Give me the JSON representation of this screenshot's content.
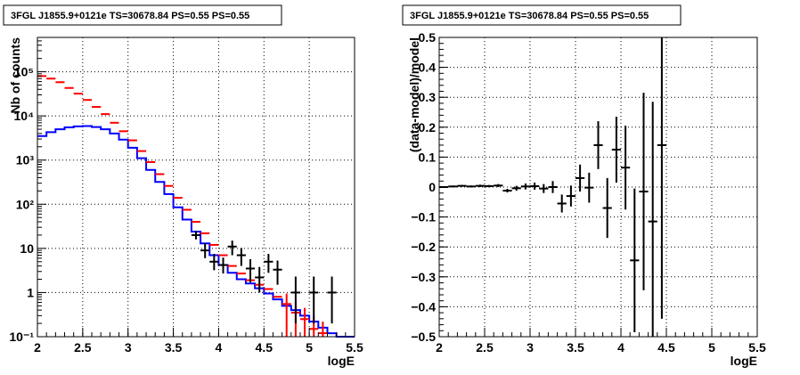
{
  "chart_data": [
    {
      "type": "histogram",
      "title": "3FGL J1855.9+0121e TS=30678.84 PS=0.55 PS=0.55",
      "xlabel": "logE",
      "ylabel": "Nb of counts",
      "xlim": [
        2,
        5.5
      ],
      "ylim": [
        0.1,
        600000
      ],
      "yscale": "log",
      "grid": true,
      "x_ticks": [
        "2",
        "2.5",
        "3",
        "3.5",
        "4",
        "4.5",
        "5",
        "5.5"
      ],
      "y_ticks": [
        {
          "value": 0.1,
          "label": "10⁻¹"
        },
        {
          "value": 1,
          "label": "1"
        },
        {
          "value": 10,
          "label": "10"
        },
        {
          "value": 100,
          "label": "10²"
        },
        {
          "value": 1000,
          "label": "10³"
        },
        {
          "value": 10000,
          "label": "10⁴"
        },
        {
          "value": 100000,
          "label": "10⁵"
        }
      ],
      "bin_width": 0.1,
      "series": [
        {
          "kind": "step",
          "color": "#0000ff",
          "x": [
            2.05,
            2.15,
            2.25,
            2.35,
            2.45,
            2.55,
            2.65,
            2.75,
            2.85,
            2.95,
            3.05,
            3.15,
            3.25,
            3.35,
            3.45,
            3.55,
            3.65,
            3.75,
            3.85,
            3.95,
            4.05,
            4.15,
            4.25,
            4.35,
            4.45,
            4.55,
            4.65,
            4.75,
            4.85,
            4.95,
            5.05,
            5.15,
            5.25,
            5.35,
            5.45
          ],
          "values": [
            3500,
            4300,
            5000,
            5500,
            5800,
            5900,
            5600,
            5000,
            4000,
            2900,
            1900,
            1100,
            600,
            320,
            170,
            85,
            45,
            24,
            13,
            7,
            4.2,
            2.8,
            2.0,
            1.6,
            1.25,
            0.95,
            0.7,
            0.5,
            0.4,
            0.3,
            0.22,
            0.16,
            0.12,
            0.09,
            0.07
          ]
        },
        {
          "kind": "errorbar",
          "color": "#ff0000",
          "x": [
            2.05,
            2.15,
            2.25,
            2.35,
            2.45,
            2.55,
            2.65,
            2.75,
            2.85,
            2.95,
            3.05,
            3.15,
            3.25,
            3.35,
            3.45,
            3.55,
            3.65,
            3.75,
            3.85,
            3.95,
            4.05,
            4.15,
            4.25,
            4.35,
            4.45,
            4.55,
            4.65,
            4.75,
            4.85,
            4.95,
            5.05,
            5.15,
            5.25
          ],
          "values": [
            80000,
            70000,
            58000,
            43000,
            32000,
            23000,
            16000,
            11000,
            7000,
            4500,
            2800,
            1600,
            900,
            480,
            260,
            140,
            75,
            40,
            22,
            12,
            7,
            4,
            2.7,
            1.9,
            1.5,
            1.2,
            0.8,
            0.55,
            0.35,
            0.25,
            0.15,
            0.12,
            0.08
          ],
          "err_low": [
            0,
            0,
            0,
            0,
            0,
            0,
            0,
            0,
            0,
            0,
            0,
            0,
            0,
            0,
            0,
            0,
            0,
            0,
            0,
            0,
            0,
            0,
            0,
            0,
            0,
            0,
            0,
            0.45,
            0.28,
            0.2,
            0.12,
            0.1,
            0
          ],
          "err_high": [
            0,
            0,
            0,
            0,
            0,
            0,
            0,
            0,
            0,
            0,
            0,
            0,
            0,
            0,
            0,
            0,
            0,
            0,
            0,
            0,
            0,
            0,
            0,
            0,
            0,
            0,
            0,
            0.4,
            0.3,
            0.2,
            0.15,
            0.1,
            0
          ]
        },
        {
          "kind": "errorbar",
          "color": "#000000",
          "x": [
            3.75,
            3.85,
            3.95,
            4.05,
            4.15,
            4.25,
            4.35,
            4.45,
            4.55,
            4.65,
            4.85,
            5.05,
            5.25
          ],
          "values": [
            20,
            9,
            5,
            4.2,
            11,
            7,
            3.5,
            2.2,
            5,
            3.3,
            1,
            1,
            1
          ],
          "err_low": [
            4,
            3,
            1.8,
            1.5,
            4,
            3,
            1.8,
            1.2,
            2.2,
            1.8,
            0.8,
            0.8,
            0.8
          ],
          "err_high": [
            5,
            4,
            2.5,
            2,
            4,
            3.2,
            2.2,
            1.6,
            2.5,
            2,
            1.3,
            1.3,
            1.3
          ]
        }
      ]
    },
    {
      "type": "scatter",
      "title": "3FGL J1855.9+0121e TS=30678.84 PS=0.55 PS=0.55",
      "xlabel": "logE",
      "ylabel": "(data-model)/model",
      "xlim": [
        2,
        5.5
      ],
      "ylim": [
        -0.5,
        0.5
      ],
      "grid": true,
      "x_ticks": [
        "2",
        "2.5",
        "3",
        "3.5",
        "4",
        "4.5",
        "5",
        "5.5"
      ],
      "y_ticks": [
        "−0.5",
        "−0.4",
        "−0.3",
        "−0.2",
        "−0.1",
        "0",
        "0.1",
        "0.2",
        "0.3",
        "0.4",
        "0.5"
      ],
      "bin_width": 0.1,
      "series": [
        {
          "kind": "errorbar",
          "color": "#000000",
          "x": [
            2.05,
            2.15,
            2.25,
            2.35,
            2.45,
            2.55,
            2.65,
            2.75,
            2.85,
            2.95,
            3.05,
            3.15,
            3.25,
            3.35,
            3.45,
            3.55,
            3.65,
            3.75,
            3.85,
            3.95,
            4.05,
            4.15,
            4.25,
            4.35,
            4.45
          ],
          "values": [
            0,
            0.002,
            0.004,
            0.002,
            0.004,
            0.003,
            0.005,
            -0.012,
            -0.004,
            0.002,
            0.003,
            -0.005,
            0.0,
            -0.055,
            -0.03,
            0.03,
            -0.002,
            0.14,
            -0.07,
            0.125,
            0.065,
            -0.245,
            -0.015,
            -0.115,
            0.14
          ],
          "err": [
            0.003,
            0.003,
            0.003,
            0.003,
            0.004,
            0.004,
            0.005,
            0.006,
            0.008,
            0.01,
            0.012,
            0.015,
            0.02,
            0.03,
            0.035,
            0.045,
            0.05,
            0.08,
            0.1,
            0.11,
            0.14,
            0.24,
            0.33,
            0.4,
            0.58
          ]
        }
      ]
    }
  ]
}
